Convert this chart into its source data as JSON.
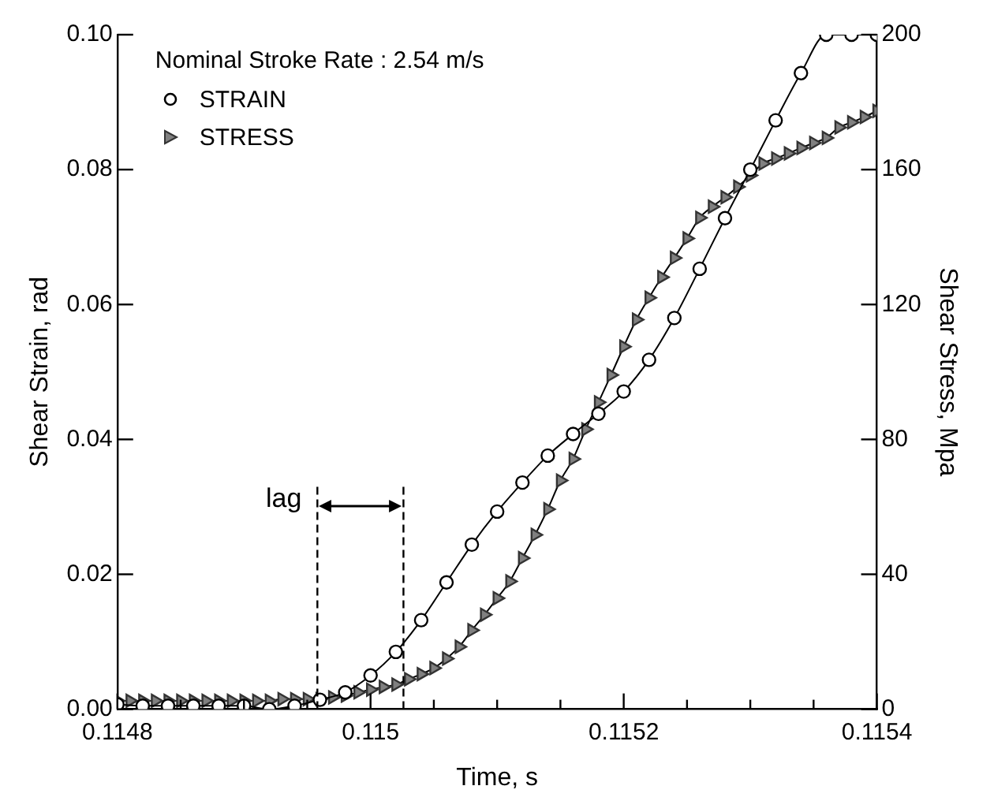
{
  "chart_data": {
    "type": "line",
    "xlabel": "Time, s",
    "ylabel": "Shear Strain, rad",
    "y2label": "Shear Stress, Mpa",
    "legend_title": "Nominal Stroke Rate : 2.54 m/s",
    "legend": "top left",
    "grid": false,
    "xlim": [
      0.1148,
      0.1154
    ],
    "xticks": [
      {
        "value": 0.1148,
        "label": "0.1148"
      },
      {
        "value": 0.11485,
        "label": null
      },
      {
        "value": 0.1149,
        "label": null
      },
      {
        "value": 0.11495,
        "label": null
      },
      {
        "value": 0.115,
        "label": "0.115"
      },
      {
        "value": 0.11505,
        "label": null
      },
      {
        "value": 0.1151,
        "label": null
      },
      {
        "value": 0.11515,
        "label": null
      },
      {
        "value": 0.1152,
        "label": "0.1152"
      },
      {
        "value": 0.11525,
        "label": null
      },
      {
        "value": 0.1153,
        "label": null
      },
      {
        "value": 0.11535,
        "label": null
      },
      {
        "value": 0.1154,
        "label": "0.1154"
      }
    ],
    "ylim": [
      0,
      0.1
    ],
    "yticks": [
      {
        "value": 0,
        "label": "0.00"
      },
      {
        "value": 0.02,
        "label": "0.02"
      },
      {
        "value": 0.04,
        "label": "0.04"
      },
      {
        "value": 0.06,
        "label": "0.06"
      },
      {
        "value": 0.08,
        "label": "0.08"
      },
      {
        "value": 0.1,
        "label": "0.10"
      }
    ],
    "y2lim": [
      0,
      200
    ],
    "y2ticks": [
      0,
      40,
      80,
      120,
      160,
      200
    ],
    "ref_lines": [
      {
        "axis": "x",
        "value": 0.114958,
        "line_style": "dashed",
        "color": "#000000"
      },
      {
        "axis": "x",
        "value": 0.115026,
        "line_style": "dashed",
        "color": "#000000"
      }
    ],
    "annotations": [
      "lag"
    ],
    "series": [
      {
        "name": "STRAIN",
        "color": "#000000",
        "marker": "circle",
        "x": [
          0.1148,
          0.11482,
          0.11484,
          0.11486,
          0.11488,
          0.1149,
          0.11492,
          0.11494,
          0.11496,
          0.11498,
          0.115,
          0.11502,
          0.11504,
          0.11506,
          0.11508,
          0.1151,
          0.11512,
          0.11514,
          0.11516,
          0.11518,
          0.1152,
          0.11522,
          0.11524,
          0.11526,
          0.11528,
          0.1153,
          0.11532,
          0.11534,
          0.11536,
          0.11538,
          0.1154
        ],
        "values": [
          0.0007,
          0.0005,
          0.0005,
          0.0005,
          0.0005,
          0.0005,
          0,
          0.0005,
          0.0014,
          0.0025,
          0.005,
          0.0085,
          0.0132,
          0.0188,
          0.0244,
          0.0293,
          0.0336,
          0.0376,
          0.0408,
          0.0438,
          0.0471,
          0.0518,
          0.058,
          0.0653,
          0.0728,
          0.08,
          0.0873,
          0.0943,
          0.1,
          0.1,
          0.1
        ]
      },
      {
        "name": "STRESS",
        "color": "#808080",
        "marker": "triangle",
        "axis": "y2",
        "x": [
          0.1148,
          0.11481,
          0.11482,
          0.11483,
          0.11484,
          0.11485,
          0.11486,
          0.11487,
          0.11488,
          0.11489,
          0.1149,
          0.11491,
          0.11492,
          0.11493,
          0.11494,
          0.11495,
          0.11496,
          0.11497,
          0.11498,
          0.11499,
          0.115,
          0.11501,
          0.11502,
          0.11503,
          0.11504,
          0.11505,
          0.11506,
          0.11507,
          0.11508,
          0.11509,
          0.1151,
          0.11511,
          0.11512,
          0.11513,
          0.11514,
          0.11515,
          0.11516,
          0.11517,
          0.11518,
          0.11519,
          0.1152,
          0.11521,
          0.11522,
          0.11523,
          0.11524,
          0.11525,
          0.11526,
          0.11527,
          0.11528,
          0.11529,
          0.1153,
          0.11531,
          0.11532,
          0.11533,
          0.11534,
          0.11535,
          0.11536,
          0.11537,
          0.11538,
          0.11539,
          0.1154
        ],
        "values": [
          2.5,
          2.5,
          2.5,
          2.5,
          2.5,
          2.5,
          2.5,
          2.5,
          2.5,
          2.5,
          2.5,
          2.5,
          2.5,
          3,
          3,
          3,
          3,
          3.5,
          4,
          5,
          5.8,
          6.6,
          7.3,
          8.9,
          10.4,
          12.2,
          15,
          18.5,
          23.4,
          28,
          32.9,
          37.9,
          44.8,
          51.7,
          59.3,
          67.8,
          74.2,
          83,
          91,
          99.1,
          107.5,
          115.5,
          122,
          128.1,
          133.8,
          139.6,
          145.7,
          149,
          151.8,
          154.9,
          158.3,
          161.8,
          163.3,
          164.8,
          166.4,
          167.9,
          169.4,
          172.5,
          174,
          175.6,
          177.4
        ]
      }
    ]
  }
}
